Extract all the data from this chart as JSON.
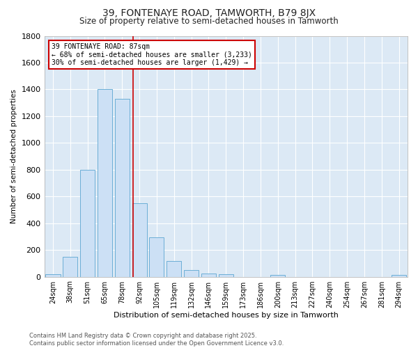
{
  "title": "39, FONTENAYE ROAD, TAMWORTH, B79 8JX",
  "subtitle": "Size of property relative to semi-detached houses in Tamworth",
  "xlabel": "Distribution of semi-detached houses by size in Tamworth",
  "ylabel": "Number of semi-detached properties",
  "bar_labels": [
    "24sqm",
    "38sqm",
    "51sqm",
    "65sqm",
    "78sqm",
    "92sqm",
    "105sqm",
    "119sqm",
    "132sqm",
    "146sqm",
    "159sqm",
    "173sqm",
    "186sqm",
    "200sqm",
    "213sqm",
    "227sqm",
    "240sqm",
    "254sqm",
    "267sqm",
    "281sqm",
    "294sqm"
  ],
  "bar_values": [
    20,
    150,
    800,
    1400,
    1330,
    550,
    295,
    120,
    50,
    25,
    20,
    0,
    0,
    15,
    0,
    0,
    0,
    0,
    0,
    0,
    15
  ],
  "bar_color": "#cce0f5",
  "bar_edge_color": "#6baed6",
  "vline_color": "#cc0000",
  "annotation_title": "39 FONTENAYE ROAD: 87sqm",
  "annotation_line1": "← 68% of semi-detached houses are smaller (3,233)",
  "annotation_line2": "30% of semi-detached houses are larger (1,429) →",
  "annotation_box_color": "#ffffff",
  "annotation_box_edge": "#cc0000",
  "ylim": [
    0,
    1800
  ],
  "yticks": [
    0,
    200,
    400,
    600,
    800,
    1000,
    1200,
    1400,
    1600,
    1800
  ],
  "footer1": "Contains HM Land Registry data © Crown copyright and database right 2025.",
  "footer2": "Contains public sector information licensed under the Open Government Licence v3.0.",
  "fig_bg_color": "#ffffff",
  "plot_bg_color": "#dce9f5",
  "grid_color": "#ffffff",
  "spine_color": "#aaaaaa"
}
